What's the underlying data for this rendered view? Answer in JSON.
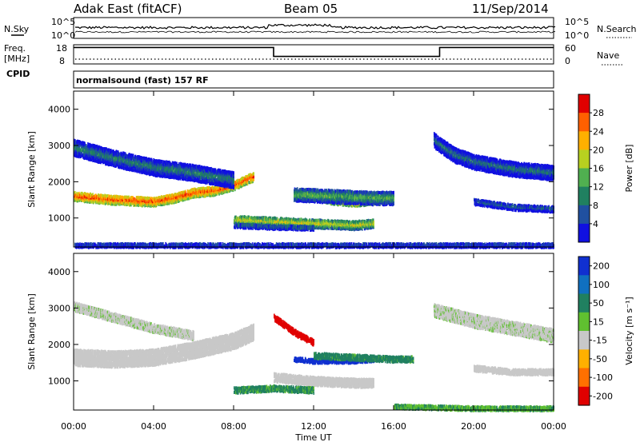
{
  "header": {
    "radar": "Adak East (fitACF)",
    "beam": "Beam 05",
    "date": "11/Sep/2014"
  },
  "noise_panel": {
    "left_label": "N.Sky",
    "right_label": "N.Search",
    "left_ticks": [
      "10^5",
      "10^0"
    ],
    "right_ticks": [
      "10^5",
      "10^0"
    ]
  },
  "freq_panel": {
    "left_label_top": "Freq.",
    "left_label_bottom": "[MHz]",
    "left_ticks": [
      "18",
      "8"
    ],
    "right_label": "Nave",
    "right_ticks": [
      "60",
      "0"
    ],
    "cpid_label": "CPID",
    "freq_series": [
      {
        "x": 0.0,
        "y": 17
      },
      {
        "x": 10.0,
        "y": 17
      },
      {
        "x": 10.0,
        "y": 10.5
      },
      {
        "x": 18.3,
        "y": 10.5
      },
      {
        "x": 18.3,
        "y": 17
      },
      {
        "x": 24.0,
        "y": 17
      }
    ],
    "nave_level": 8
  },
  "cpid_panel": {
    "text": "normalsound (fast) 157 RF"
  },
  "chart_data": [
    {
      "type": "heatmap",
      "title": "",
      "xlabel": "Time UT",
      "ylabel": "Slant Range [km]",
      "xlim": [
        0,
        24
      ],
      "ylim": [
        200,
        4500
      ],
      "x_ticks": [
        "00:00",
        "04:00",
        "08:00",
        "12:00",
        "16:00",
        "20:00",
        "00:00"
      ],
      "y_ticks": [
        "1000",
        "2000",
        "3000",
        "4000"
      ],
      "colorbar": {
        "label": "Power [dB]",
        "ticks": [
          "4",
          "8",
          "12",
          "16",
          "20",
          "24",
          "28"
        ],
        "range": [
          0,
          30
        ],
        "colors": [
          "#1010e0",
          "#2050a0",
          "#208060",
          "#50b050",
          "#b8d020",
          "#ffb000",
          "#ff6000",
          "#e00000"
        ]
      },
      "bands": [
        {
          "name": "main-trace",
          "points": [
            [
              0,
              1650
            ],
            [
              2,
              1550
            ],
            [
              4,
              1500
            ],
            [
              5,
              1600
            ],
            [
              6,
              1750
            ],
            [
              7,
              1800
            ],
            [
              8,
              1950
            ],
            [
              9,
              2200
            ]
          ],
          "width": 250,
          "value": 26
        },
        {
          "name": "upper-scatter",
          "points": [
            [
              0,
              3000
            ],
            [
              2,
              2700
            ],
            [
              4,
              2450
            ],
            [
              6,
              2300
            ],
            [
              8,
              2100
            ]
          ],
          "width": 450,
          "value": 10
        },
        {
          "name": "mid-trace",
          "points": [
            [
              12,
              1650
            ],
            [
              13,
              1550
            ],
            [
              14,
              1500
            ],
            [
              15,
              1550
            ]
          ],
          "width": 220,
          "value": 25
        },
        {
          "name": "mid-scatter",
          "points": [
            [
              11,
              1700
            ],
            [
              13,
              1650
            ],
            [
              15,
              1600
            ],
            [
              16,
              1600
            ]
          ],
          "width": 350,
          "value": 14
        },
        {
          "name": "lower-trace",
          "points": [
            [
              8,
              1000
            ],
            [
              10,
              950
            ],
            [
              12,
              900
            ],
            [
              14,
              850
            ],
            [
              15,
              900
            ]
          ],
          "width": 250,
          "value": 18
        },
        {
          "name": "near-field",
          "points": [
            [
              8,
              850
            ],
            [
              10,
              800
            ],
            [
              12,
              780
            ]
          ],
          "width": 120,
          "value": 10
        },
        {
          "name": "right-upper",
          "points": [
            [
              18,
              3200
            ],
            [
              19,
              2800
            ],
            [
              20,
              2600
            ],
            [
              22,
              2400
            ],
            [
              24,
              2300
            ]
          ],
          "width": 400,
          "value": 9
        },
        {
          "name": "right-lower",
          "points": [
            [
              20,
              1500
            ],
            [
              22,
              1350
            ],
            [
              24,
              1300
            ]
          ],
          "width": 150,
          "value": 8
        },
        {
          "name": "ground-scatter",
          "points": [
            [
              0,
              300
            ],
            [
              6,
              300
            ],
            [
              12,
              300
            ],
            [
              18,
              300
            ],
            [
              24,
              300
            ]
          ],
          "width": 120,
          "value": 8
        }
      ]
    },
    {
      "type": "heatmap",
      "title": "",
      "xlabel": "Time UT",
      "ylabel": "Slant Range [km]",
      "xlim": [
        0,
        24
      ],
      "ylim": [
        200,
        4500
      ],
      "x_ticks": [
        "00:00",
        "04:00",
        "08:00",
        "12:00",
        "16:00",
        "20:00",
        "00:00"
      ],
      "y_ticks": [
        "1000",
        "2000",
        "3000",
        "4000"
      ],
      "colorbar": {
        "label": "Velocity [m s⁻¹]",
        "ticks": [
          "200",
          "100",
          "50",
          "15",
          "-15",
          "-50",
          "-100",
          "-200"
        ],
        "range": [
          -250,
          250
        ],
        "colors": [
          "#1030d0",
          "#1070c0",
          "#208060",
          "#60c030",
          "#c8c8c8",
          "#ffb000",
          "#ff7000",
          "#e00000"
        ]
      },
      "bands": [
        {
          "name": "ground-grey",
          "points": [
            [
              0,
              1700
            ],
            [
              2,
              1650
            ],
            [
              4,
              1700
            ],
            [
              6,
              1900
            ],
            [
              8,
              2150
            ],
            [
              9,
              2400
            ]
          ],
          "width": 420,
          "value": 0
        },
        {
          "name": "upper-grey",
          "points": [
            [
              0,
              3100
            ],
            [
              2,
              2800
            ],
            [
              4,
              2500
            ],
            [
              6,
              2300
            ]
          ],
          "width": 250,
          "value": 5
        },
        {
          "name": "red-arc",
          "points": [
            [
              10,
              2800
            ],
            [
              11,
              2400
            ],
            [
              12,
              2100
            ]
          ],
          "width": 150,
          "value": -180
        },
        {
          "name": "blue-streak",
          "points": [
            [
              11,
              1650
            ],
            [
              12,
              1600
            ],
            [
              14,
              1600
            ],
            [
              15,
              1650
            ]
          ],
          "width": 120,
          "value": 180
        },
        {
          "name": "green-streak",
          "points": [
            [
              12,
              1750
            ],
            [
              14,
              1700
            ],
            [
              16,
              1650
            ],
            [
              17,
              1650
            ]
          ],
          "width": 160,
          "value": 45
        },
        {
          "name": "lower-grey",
          "points": [
            [
              10,
              1150
            ],
            [
              12,
              1050
            ],
            [
              14,
              1000
            ],
            [
              15,
              1000
            ]
          ],
          "width": 220,
          "value": 0
        },
        {
          "name": "lower-green",
          "points": [
            [
              8,
              800
            ],
            [
              10,
              850
            ],
            [
              12,
              800
            ]
          ],
          "width": 160,
          "value": 40
        },
        {
          "name": "right-grey-upper",
          "points": [
            [
              18,
              3000
            ],
            [
              20,
              2700
            ],
            [
              22,
              2500
            ],
            [
              24,
              2300
            ]
          ],
          "width": 350,
          "value": 5
        },
        {
          "name": "right-grey-lower",
          "points": [
            [
              20,
              1400
            ],
            [
              22,
              1300
            ],
            [
              24,
              1300
            ]
          ],
          "width": 150,
          "value": 0
        },
        {
          "name": "bottom-green",
          "points": [
            [
              16,
              350
            ],
            [
              20,
              300
            ],
            [
              24,
              300
            ]
          ],
          "width": 100,
          "value": 30
        }
      ]
    }
  ]
}
